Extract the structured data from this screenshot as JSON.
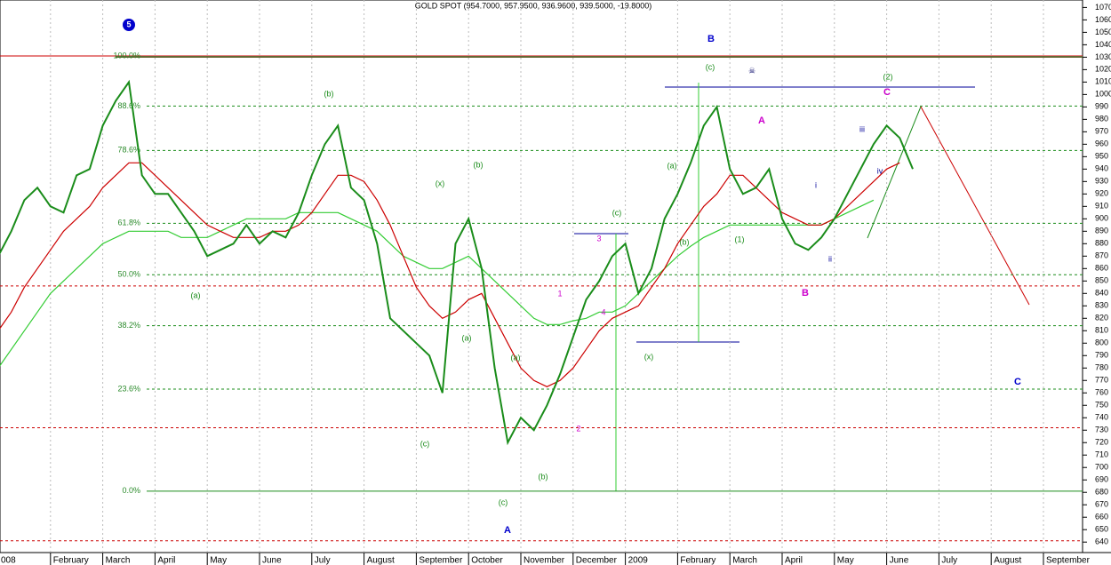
{
  "chart_data": {
    "type": "line",
    "title": "GOLD SPOT (954.7000, 957.9500, 936.9600, 939.5000, -19.8000)",
    "categories": [
      "008",
      null,
      null,
      null,
      "February",
      null,
      null,
      null,
      "March",
      null,
      null,
      null,
      "April",
      null,
      null,
      null,
      "May",
      null,
      null,
      null,
      "June",
      null,
      null,
      null,
      "July",
      null,
      null,
      null,
      "August",
      null,
      null,
      null,
      "September",
      null,
      null,
      null,
      "October",
      null,
      null,
      null,
      "November",
      null,
      null,
      null,
      "December",
      null,
      null,
      null,
      "2009",
      null,
      null,
      null,
      "February",
      null,
      null,
      null,
      "March",
      null,
      null,
      null,
      "April",
      null,
      null,
      null,
      "May",
      null,
      null,
      null,
      "June",
      null,
      null,
      null,
      "July",
      null,
      null,
      null,
      "August",
      null,
      null,
      null,
      "September",
      null,
      null,
      null
    ],
    "series": [
      {
        "color": "#1a8c1a",
        "values": [
          870,
          890,
          915,
          925,
          910,
          905,
          935,
          940,
          975,
          995,
          1010,
          935,
          920,
          920,
          905,
          890,
          870,
          875,
          880,
          895,
          880,
          890,
          885,
          905,
          935,
          960,
          975,
          925,
          915,
          880,
          820,
          810,
          800,
          790,
          760,
          880,
          900,
          860,
          780,
          720,
          740,
          730,
          750,
          775,
          805,
          835,
          850,
          870,
          880,
          840,
          860,
          900,
          920,
          945,
          975,
          990,
          940,
          920,
          925,
          940,
          900,
          880,
          875,
          885,
          900,
          920,
          940,
          960,
          975,
          965,
          940,
          null,
          null,
          null,
          null,
          null,
          null,
          null,
          null,
          null,
          null,
          null,
          null,
          null
        ]
      },
      {
        "color": "#cc0000",
        "values": [
          810,
          825,
          845,
          860,
          875,
          890,
          900,
          910,
          925,
          935,
          945,
          945,
          935,
          925,
          915,
          905,
          895,
          890,
          885,
          885,
          885,
          890,
          890,
          895,
          905,
          920,
          935,
          935,
          930,
          915,
          895,
          870,
          845,
          830,
          820,
          825,
          835,
          840,
          820,
          800,
          780,
          770,
          765,
          770,
          780,
          795,
          810,
          820,
          825,
          830,
          845,
          860,
          880,
          895,
          910,
          920,
          935,
          935,
          925,
          915,
          905,
          900,
          895,
          895,
          900,
          910,
          920,
          930,
          940,
          945,
          null,
          null,
          null,
          null,
          null,
          null,
          null,
          null,
          null,
          null,
          null,
          null,
          null,
          null
        ]
      },
      {
        "color": "#33cc33",
        "values": [
          780,
          795,
          810,
          825,
          840,
          850,
          860,
          870,
          880,
          885,
          890,
          890,
          890,
          890,
          885,
          885,
          885,
          890,
          895,
          900,
          900,
          900,
          900,
          905,
          905,
          905,
          905,
          900,
          895,
          890,
          880,
          870,
          865,
          860,
          860,
          865,
          870,
          860,
          850,
          840,
          830,
          820,
          815,
          815,
          818,
          820,
          825,
          825,
          830,
          840,
          850,
          860,
          870,
          878,
          885,
          890,
          895,
          895,
          895,
          895,
          895,
          895,
          895,
          895,
          900,
          905,
          910,
          915,
          null,
          null,
          null,
          null,
          null,
          null,
          null,
          null,
          null,
          null,
          null,
          null,
          null,
          null,
          null,
          null
        ]
      }
    ],
    "ylim": [
      633,
      1076
    ],
    "yticks": [
      640,
      650,
      660,
      670,
      680,
      690,
      700,
      710,
      720,
      730,
      740,
      750,
      760,
      770,
      780,
      790,
      800,
      810,
      820,
      830,
      840,
      850,
      860,
      870,
      880,
      890,
      900,
      910,
      920,
      930,
      940,
      950,
      960,
      970,
      980,
      990,
      1000,
      1010,
      1020,
      1030,
      1040,
      1050,
      1060,
      1070
    ],
    "levels": [
      {
        "value": 1031,
        "label": "100.0%"
      },
      {
        "value": 990.7,
        "label": "88.6%"
      },
      {
        "value": 955,
        "label": "78.6%"
      },
      {
        "value": 896.4,
        "label": "61.8%"
      },
      {
        "value": 855,
        "label": "50.0%"
      },
      {
        "value": 814,
        "label": "38.2%"
      },
      {
        "value": 763,
        "label": "23.6%"
      },
      {
        "value": 681,
        "label": "0.0%"
      }
    ],
    "red_levels": [
      846,
      732,
      641
    ],
    "annotations": [
      {
        "text": "5",
        "color": "#0000cc"
      },
      {
        "text": "B",
        "color": "#0000cc"
      },
      {
        "text": "(c)",
        "color": "#1a8c1a"
      },
      {
        "text": "☠",
        "color": "#000066"
      },
      {
        "text": "(2)",
        "color": "#1a8c1a"
      },
      {
        "text": "C",
        "color": "#cc00cc"
      },
      {
        "text": "A",
        "color": "#cc00cc"
      },
      {
        "text": "iii",
        "color": "#000099"
      },
      {
        "text": "iv",
        "color": "#000099"
      },
      {
        "text": "i",
        "color": "#000099"
      },
      {
        "text": "ii",
        "color": "#000099"
      },
      {
        "text": "B",
        "color": "#cc00cc"
      },
      {
        "text": "(b)",
        "color": "#1a8c1a"
      },
      {
        "text": "(x)",
        "color": "#1a8c1a"
      },
      {
        "text": "(b)",
        "color": "#1a8c1a"
      },
      {
        "text": "(a)",
        "color": "#1a8c1a"
      },
      {
        "text": "(a)",
        "color": "#1a8c1a"
      },
      {
        "text": "(c)",
        "color": "#1a8c1a"
      },
      {
        "text": "(a)",
        "color": "#1a8c1a"
      },
      {
        "text": "(b)",
        "color": "#1a8c1a"
      },
      {
        "text": "(c)",
        "color": "#1a8c1a"
      },
      {
        "text": "A",
        "color": "#0000cc"
      },
      {
        "text": "(c)",
        "color": "#1a8c1a"
      },
      {
        "text": "3",
        "color": "#cc00cc"
      },
      {
        "text": "4",
        "color": "#cc00cc"
      },
      {
        "text": "1",
        "color": "#cc00cc"
      },
      {
        "text": "2",
        "color": "#cc00cc"
      },
      {
        "text": "(x)",
        "color": "#1a8c1a"
      },
      {
        "text": "(a)",
        "color": "#1a8c1a"
      },
      {
        "text": "(b)",
        "color": "#1a8c1a"
      },
      {
        "text": "(1)",
        "color": "#1a8c1a"
      },
      {
        "text": "C",
        "color": "#0000cc"
      }
    ]
  }
}
